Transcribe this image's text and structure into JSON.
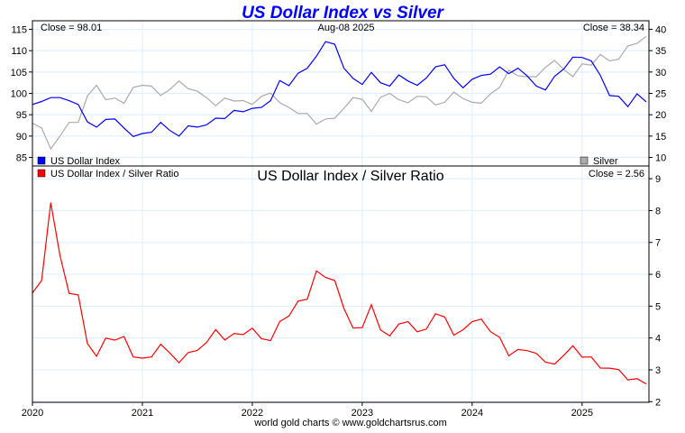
{
  "chart_data": {
    "type": "line",
    "title": "US Dollar Index vs Silver",
    "date_label": "Aug-08  2025",
    "footer": "world gold charts © www.goldchartsrus.com",
    "x_start": "2020-01",
    "x_step": "month",
    "x_tick_labels": [
      "2020",
      "2021",
      "2022",
      "2023",
      "2024",
      "2025"
    ],
    "top_panel": {
      "left_axis": {
        "ticks": [
          85,
          90,
          95,
          100,
          105,
          110,
          115
        ],
        "ylim": [
          83,
          117
        ]
      },
      "right_axis": {
        "ticks": [
          10,
          15,
          20,
          25,
          30,
          35,
          40
        ],
        "ylim": [
          8,
          42
        ]
      },
      "close_left": "Close = 98.01",
      "close_right": "Close = 38.34",
      "series": [
        {
          "name": "US Dollar Index",
          "axis": "left",
          "color": "#0000ff",
          "values": [
            97.4,
            98.1,
            99.0,
            99.0,
            98.3,
            97.4,
            93.3,
            92.1,
            93.9,
            94.0,
            91.9,
            89.9,
            90.6,
            90.9,
            93.2,
            91.3,
            90.0,
            92.4,
            92.1,
            92.6,
            94.2,
            94.1,
            96.0,
            95.7,
            96.5,
            96.7,
            98.3,
            103.0,
            101.8,
            104.7,
            105.9,
            108.7,
            112.1,
            111.5,
            105.9,
            103.5,
            102.1,
            104.9,
            102.5,
            101.7,
            104.3,
            102.9,
            101.9,
            103.6,
            106.2,
            106.7,
            103.5,
            101.3,
            103.3,
            104.2,
            104.5,
            106.2,
            104.6,
            105.9,
            104.1,
            101.7,
            100.8,
            104.0,
            105.7,
            108.5,
            108.4,
            107.6,
            104.2,
            99.5,
            99.3,
            96.9,
            99.9,
            98.01
          ]
        },
        {
          "name": "Silver",
          "axis": "right",
          "color": "#aaaaaa",
          "values": [
            18.0,
            16.9,
            12.0,
            15.0,
            18.2,
            18.2,
            24.4,
            26.9,
            23.5,
            23.9,
            22.7,
            26.4,
            26.9,
            26.7,
            24.5,
            25.9,
            27.9,
            26.1,
            25.5,
            24.0,
            22.1,
            23.9,
            23.2,
            23.3,
            22.4,
            24.3,
            25.1,
            22.8,
            21.7,
            20.3,
            20.3,
            17.8,
            19.0,
            19.2,
            21.5,
            24.0,
            23.6,
            20.8,
            24.1,
            25.0,
            23.5,
            22.8,
            24.3,
            24.2,
            22.3,
            22.9,
            25.3,
            23.8,
            22.9,
            22.7,
            24.9,
            26.4,
            30.4,
            29.1,
            28.9,
            28.9,
            31.1,
            32.7,
            30.6,
            28.9,
            31.9,
            31.6,
            34.1,
            32.6,
            33.0,
            36.1,
            36.7,
            38.34
          ]
        }
      ]
    },
    "bottom_panel": {
      "title": "US Dollar Index / Silver Ratio",
      "close": "Close = 2.56",
      "axis": {
        "ticks": [
          2,
          3,
          4,
          5,
          6,
          7,
          8,
          9
        ],
        "ylim": [
          1.98,
          9.4
        ]
      },
      "series": {
        "name": "US Dollar Index / Silver Ratio",
        "color": "#ff0000"
      }
    }
  }
}
